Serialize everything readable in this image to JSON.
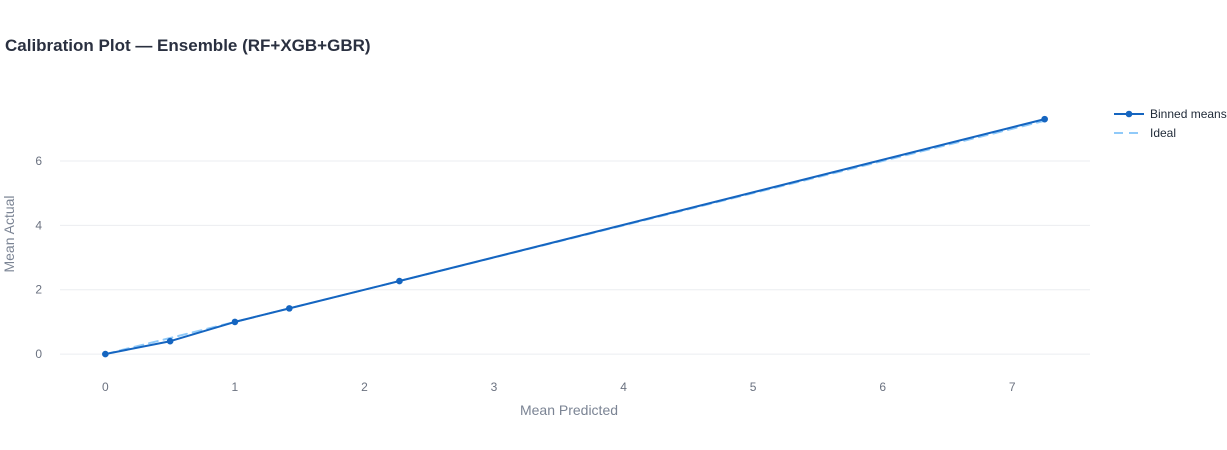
{
  "chart_data": {
    "type": "line",
    "title": "Calibration Plot — Ensemble (RF+XGB+GBR)",
    "xlabel": "Mean Predicted",
    "ylabel": "Mean Actual",
    "xlim": [
      -0.35,
      7.6
    ],
    "ylim": [
      -0.65,
      8.05
    ],
    "x_ticks": [
      0,
      1,
      2,
      3,
      4,
      5,
      6,
      7
    ],
    "y_ticks": [
      0,
      2,
      4,
      6
    ],
    "grid": true,
    "legend_position": "top-right",
    "series": [
      {
        "name": "Binned means",
        "color": "#1565c0",
        "style": "solid-with-markers",
        "x": [
          0.0,
          0.5,
          1.0,
          1.42,
          2.27,
          7.25
        ],
        "y": [
          0.0,
          0.4,
          1.0,
          1.42,
          2.27,
          7.3
        ]
      },
      {
        "name": "Ideal",
        "color": "#90caf9",
        "style": "dashed",
        "x": [
          0.0,
          7.25
        ],
        "y": [
          0.0,
          7.25
        ]
      }
    ]
  }
}
